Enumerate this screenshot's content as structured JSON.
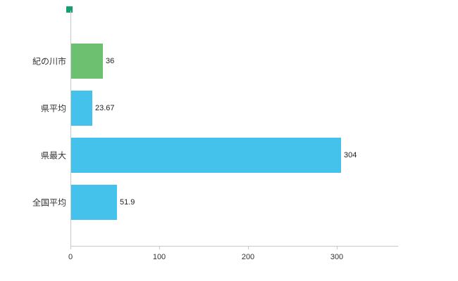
{
  "chart_data": {
    "type": "bar",
    "orientation": "horizontal",
    "title": "",
    "xlabel": "",
    "ylabel": "",
    "categories": [
      "紀の川市",
      "県平均",
      "県最大",
      "全国平均"
    ],
    "values": [
      36,
      23.67,
      304,
      51.9
    ],
    "value_labels": [
      "36",
      "23.67",
      "304",
      "51.9"
    ],
    "bar_colors": [
      "#6ec071",
      "#45c2ec",
      "#45c2ec",
      "#45c2ec"
    ],
    "x_ticks": [
      0,
      100,
      200,
      300
    ],
    "xlim": [
      0,
      369
    ],
    "grid": false,
    "legend": "none"
  },
  "colors": {
    "axis": "#c9c9c9",
    "text": "#333333",
    "corner_marker": "#12a070",
    "background": "#ffffff"
  }
}
